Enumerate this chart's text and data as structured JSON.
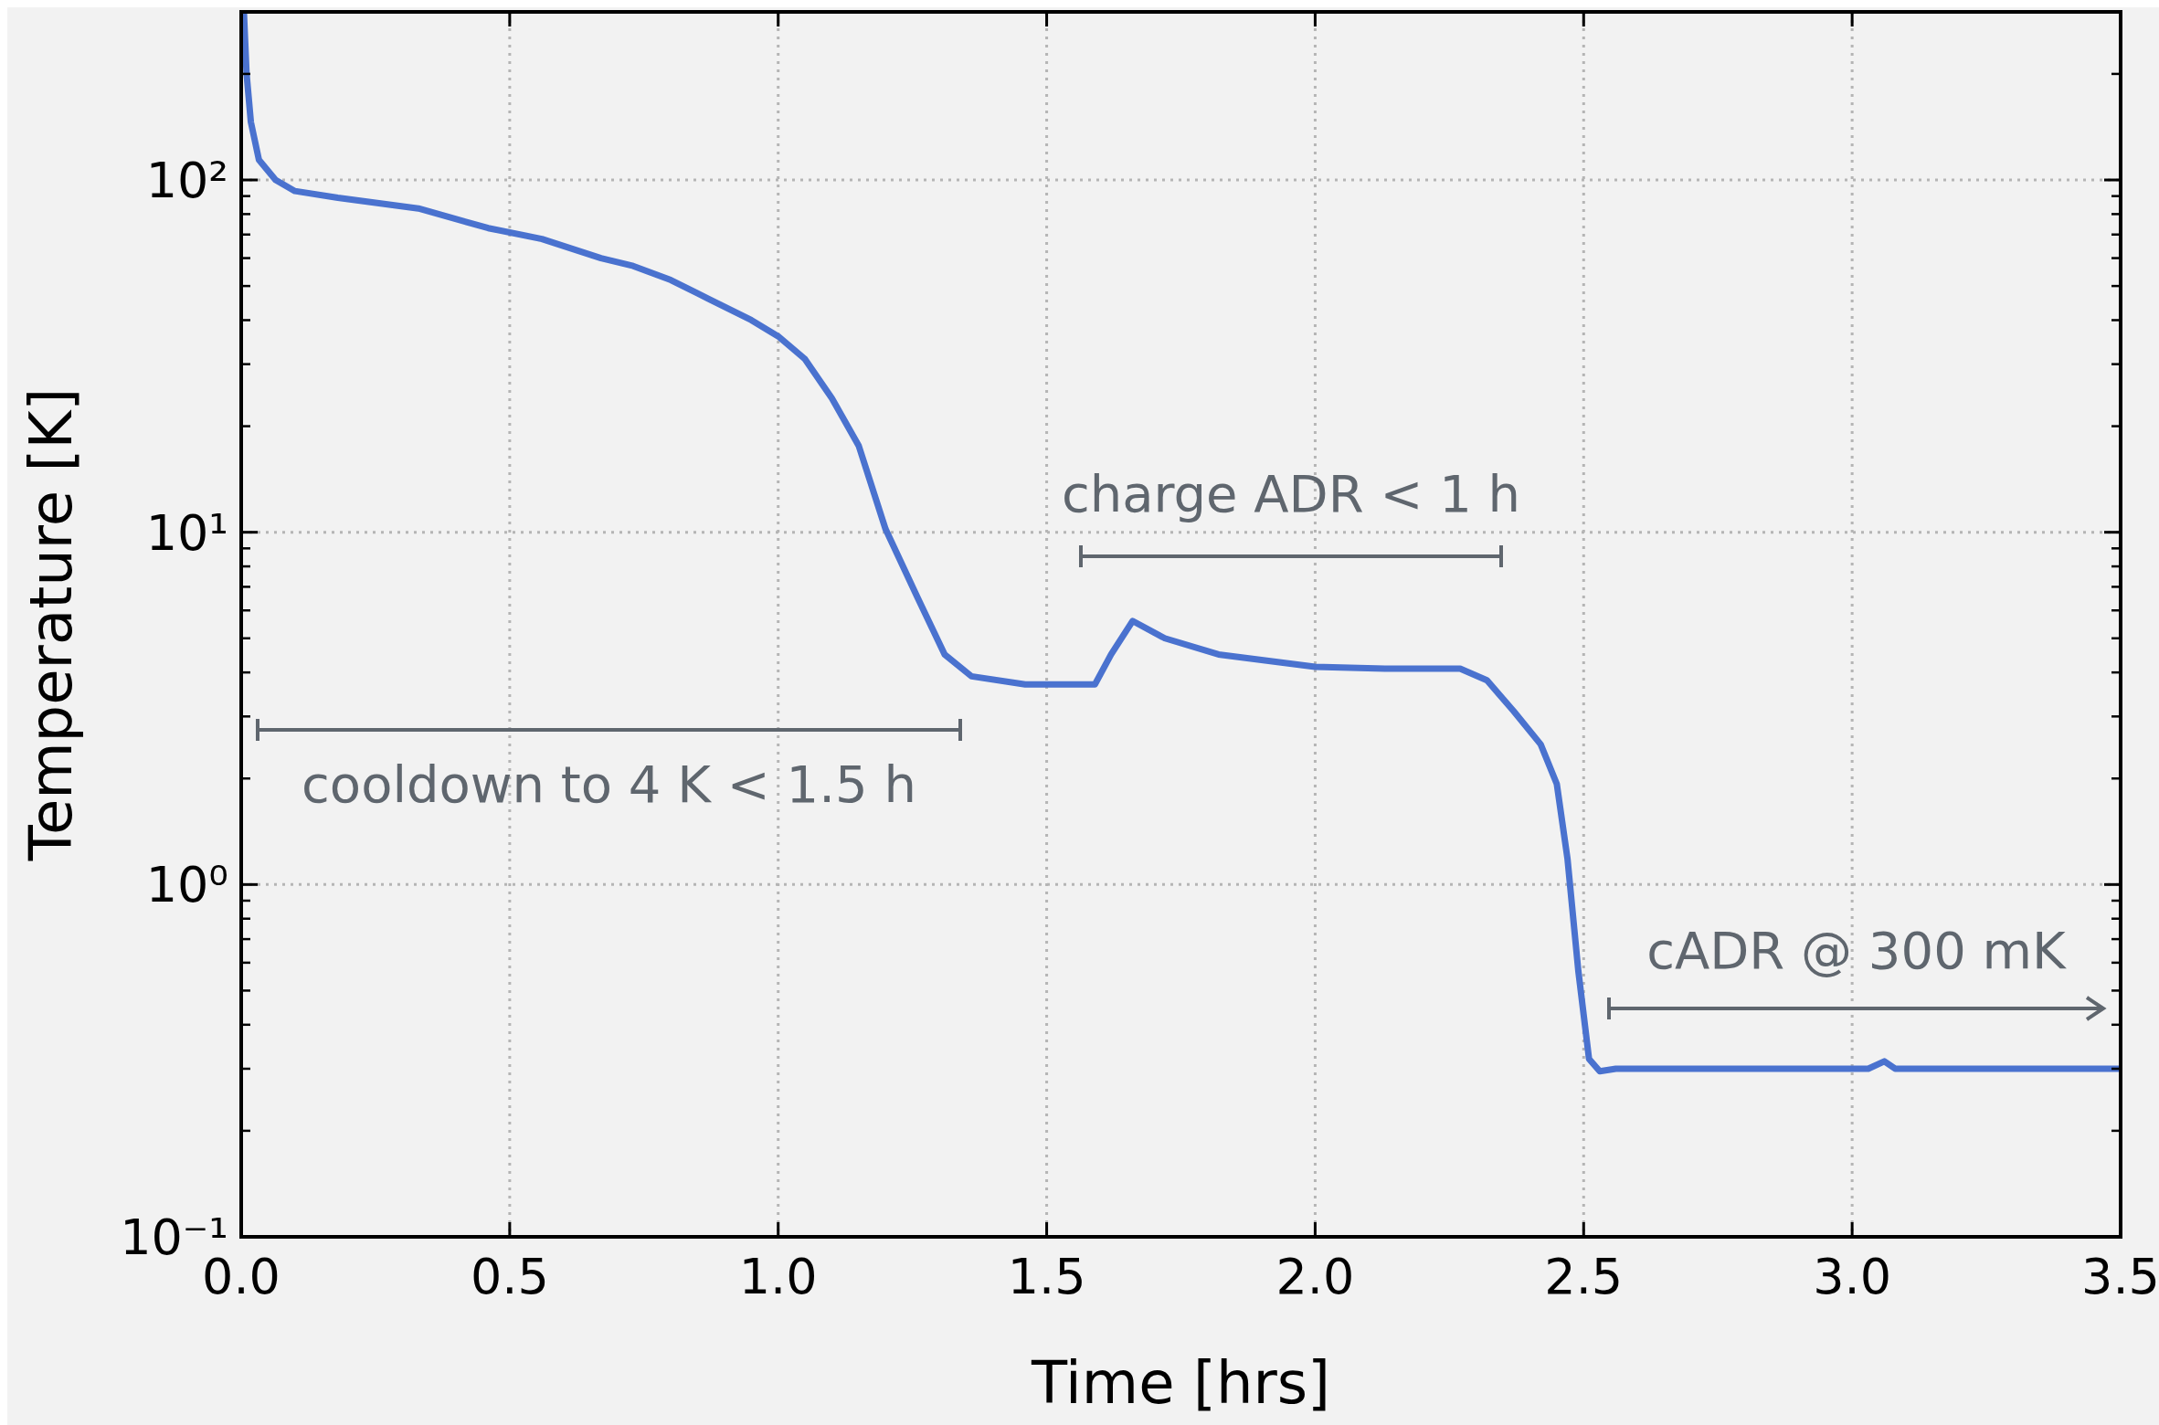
{
  "chart_data": {
    "type": "line",
    "xlabel": "Time [hrs]",
    "ylabel": "Temperature [K]",
    "log": "y",
    "grid": true,
    "line_style": "solid",
    "marker": "none",
    "xlim": [
      0,
      3.5
    ],
    "ylim": [
      0.1,
      300
    ],
    "xticks": [
      {
        "value": 0,
        "label": "0.0"
      },
      0.5,
      {
        "value": 1,
        "label": "1.0"
      },
      1.5,
      {
        "value": 2,
        "label": "2.0"
      },
      2.5,
      {
        "value": 3,
        "label": "3.0"
      },
      3.5
    ],
    "yticks": [
      {
        "value": 0.1,
        "label": "10⁻¹"
      },
      {
        "value": 1,
        "label": "10⁰"
      },
      {
        "value": 10,
        "label": "10¹"
      },
      {
        "value": 100,
        "label": "10²"
      }
    ],
    "x": [
      0.005,
      0.01,
      0.018,
      0.033,
      0.064,
      0.1,
      0.18,
      0.33,
      0.46,
      0.56,
      0.67,
      0.73,
      0.8,
      0.87,
      0.95,
      1.0,
      1.05,
      1.1,
      1.15,
      1.2,
      1.26,
      1.31,
      1.36,
      1.46,
      1.59,
      1.62,
      1.66,
      1.72,
      1.82,
      2.0,
      2.13,
      2.27,
      2.32,
      2.37,
      2.42,
      2.45,
      2.47,
      2.49,
      2.51,
      2.53,
      2.56,
      3.03,
      3.06,
      3.08,
      3.5
    ],
    "series": [
      {
        "color": "#4a72cf",
        "values": [
          300,
          200,
          146,
          114,
          100,
          93,
          89,
          83,
          73,
          68,
          60,
          57,
          52,
          46,
          40,
          36,
          31,
          24,
          17.6,
          10.2,
          6.5,
          4.5,
          3.9,
          3.7,
          3.7,
          4.5,
          5.6,
          5.0,
          4.5,
          4.15,
          4.1,
          4.1,
          3.8,
          3.1,
          2.5,
          1.93,
          1.18,
          0.57,
          0.32,
          0.295,
          0.3,
          0.3,
          0.315,
          0.3,
          0.3
        ]
      }
    ],
    "annotations": [
      "cooldown to 4 K < 1.5 h",
      "charge ADR < 1 h",
      "cADR @ 300 mK"
    ]
  }
}
